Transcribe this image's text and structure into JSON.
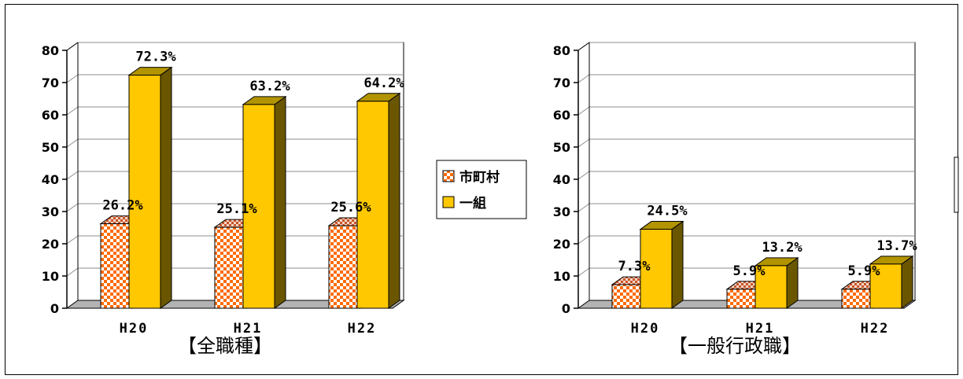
{
  "legend": [
    {
      "name": "市町村",
      "style": "checker"
    },
    {
      "name": "一組",
      "style": "gold"
    }
  ],
  "colors": {
    "checker_a": "#ff6a00",
    "checker_b": "#ffffff",
    "gold_front": "#ffc800",
    "gold_side": "#6b5600",
    "gold_top": "#b29400",
    "floor": "#b3b3b3"
  },
  "chart_data": [
    {
      "type": "bar",
      "title": "【全職種】",
      "categories": [
        "H20",
        "H21",
        "H22"
      ],
      "series": [
        {
          "name": "市町村",
          "values": [
            26.2,
            25.1,
            25.6
          ],
          "labels": [
            "26.2%",
            "25.1%",
            "25.6%"
          ]
        },
        {
          "name": "一組",
          "values": [
            72.3,
            63.2,
            64.2
          ],
          "labels": [
            "72.3%",
            "63.2%",
            "64.2%"
          ]
        }
      ],
      "yticks": [
        0,
        10,
        20,
        30,
        40,
        50,
        60,
        70,
        80
      ],
      "ylim": [
        0,
        80
      ],
      "grid": true,
      "legend_position": "right"
    },
    {
      "type": "bar",
      "title": "【一般行政職】",
      "categories": [
        "H20",
        "H21",
        "H22"
      ],
      "series": [
        {
          "name": "市町村",
          "values": [
            7.3,
            5.9,
            5.9
          ],
          "labels": [
            "7.3%",
            "5.9%",
            "5.9%"
          ]
        },
        {
          "name": "一組",
          "values": [
            24.5,
            13.2,
            13.7
          ],
          "labels": [
            "24.5%",
            "13.2%",
            "13.7%"
          ]
        }
      ],
      "yticks": [
        0,
        10,
        20,
        30,
        40,
        50,
        60,
        70,
        80
      ],
      "ylim": [
        0,
        80
      ],
      "grid": true,
      "legend_position": "left"
    }
  ]
}
